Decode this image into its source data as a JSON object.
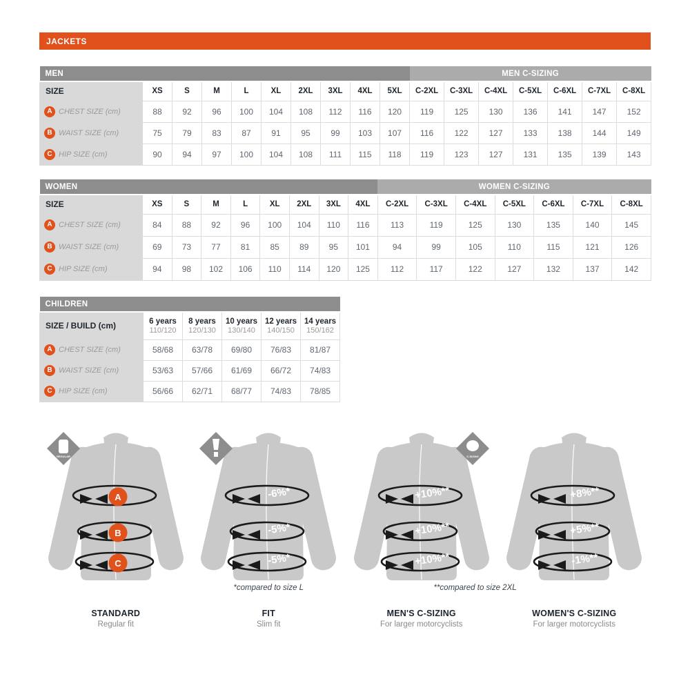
{
  "page_title": "JACKETS",
  "colors": {
    "orange": "#E1511C",
    "group_dark": "#8D8D8D",
    "group_light": "#ABABAB",
    "label_bg": "#D9D9D9",
    "jacket_gray": "#C9C9C9",
    "ring_black": "#1A1A1A"
  },
  "tables": {
    "men": {
      "group_label": "MEN",
      "group_right_label": "MEN C-SIZING",
      "size_label": "SIZE",
      "columns": [
        "XS",
        "S",
        "M",
        "L",
        "XL",
        "2XL",
        "3XL",
        "4XL",
        "5XL",
        "C-2XL",
        "C-3XL",
        "C-4XL",
        "C-5XL",
        "C-6XL",
        "C-7XL",
        "C-8XL"
      ],
      "left_group_columns": 9,
      "rows": [
        {
          "badge": "A",
          "label": "CHEST SIZE (cm)",
          "values": [
            "88",
            "92",
            "96",
            "100",
            "104",
            "108",
            "112",
            "116",
            "120",
            "119",
            "125",
            "130",
            "136",
            "141",
            "147",
            "152"
          ]
        },
        {
          "badge": "B",
          "label": "WAIST SIZE (cm)",
          "values": [
            "75",
            "79",
            "83",
            "87",
            "91",
            "95",
            "99",
            "103",
            "107",
            "116",
            "122",
            "127",
            "133",
            "138",
            "144",
            "149"
          ]
        },
        {
          "badge": "C",
          "label": "HIP SIZE (cm)",
          "values": [
            "90",
            "94",
            "97",
            "100",
            "104",
            "108",
            "111",
            "115",
            "118",
            "119",
            "123",
            "127",
            "131",
            "135",
            "139",
            "143"
          ]
        }
      ]
    },
    "women": {
      "group_label": "WOMEN",
      "group_right_label": "WOMEN C-SIZING",
      "size_label": "SIZE",
      "columns": [
        "XS",
        "S",
        "M",
        "L",
        "XL",
        "2XL",
        "3XL",
        "4XL",
        "C-2XL",
        "C-3XL",
        "C-4XL",
        "C-5XL",
        "C-6XL",
        "C-7XL",
        "C-8XL"
      ],
      "left_group_columns": 8,
      "rows": [
        {
          "badge": "A",
          "label": "CHEST SIZE (cm)",
          "values": [
            "84",
            "88",
            "92",
            "96",
            "100",
            "104",
            "110",
            "116",
            "113",
            "119",
            "125",
            "130",
            "135",
            "140",
            "145"
          ]
        },
        {
          "badge": "B",
          "label": "WAIST SIZE (cm)",
          "values": [
            "69",
            "73",
            "77",
            "81",
            "85",
            "89",
            "95",
            "101",
            "94",
            "99",
            "105",
            "110",
            "115",
            "121",
            "126"
          ]
        },
        {
          "badge": "C",
          "label": "HIP SIZE (cm)",
          "values": [
            "94",
            "98",
            "102",
            "106",
            "110",
            "114",
            "120",
            "125",
            "112",
            "117",
            "122",
            "127",
            "132",
            "137",
            "142"
          ]
        }
      ]
    },
    "children": {
      "group_label": "CHILDREN",
      "size_label": "SIZE / BUILD (cm)",
      "columns": [
        {
          "years": "6 years",
          "build": "110/120"
        },
        {
          "years": "8 years",
          "build": "120/130"
        },
        {
          "years": "10 years",
          "build": "130/140"
        },
        {
          "years": "12 years",
          "build": "140/150"
        },
        {
          "years": "14 years",
          "build": "150/162"
        }
      ],
      "rows": [
        {
          "badge": "A",
          "label": "CHEST SIZE (cm)",
          "values": [
            "58/68",
            "63/78",
            "69/80",
            "76/83",
            "81/87"
          ]
        },
        {
          "badge": "B",
          "label": "WAIST SIZE (cm)",
          "values": [
            "53/63",
            "57/66",
            "61/69",
            "66/72",
            "74/83"
          ]
        },
        {
          "badge": "C",
          "label": "HIP SIZE (cm)",
          "values": [
            "56/66",
            "62/71",
            "68/77",
            "74/83",
            "78/85"
          ]
        }
      ]
    }
  },
  "figures": [
    {
      "title": "STANDARD",
      "subtitle": "Regular fit",
      "badge": {
        "type": "regular",
        "text": "REGULAR",
        "pos": "left"
      },
      "rings": [
        {
          "kind": "badge",
          "label": "A"
        },
        {
          "kind": "badge",
          "label": "B"
        },
        {
          "kind": "badge",
          "label": "C"
        }
      ],
      "footnote": ""
    },
    {
      "title": "FIT",
      "subtitle": "Slim fit",
      "badge": {
        "type": "slim",
        "text": "",
        "pos": "left"
      },
      "rings": [
        {
          "kind": "text",
          "label": "-6%*"
        },
        {
          "kind": "text",
          "label": "-5%*"
        },
        {
          "kind": "text",
          "label": "-5%*"
        }
      ],
      "footnote": "*compared to size L",
      "footnote_align": "center"
    },
    {
      "title": "MEN'S C-SIZING",
      "subtitle": "For larger motorcyclists",
      "badge": {
        "type": "c-sizing",
        "text": "C-SIZING",
        "pos": "right"
      },
      "rings": [
        {
          "kind": "text",
          "label": "+10%**"
        },
        {
          "kind": "text",
          "label": "+10%**"
        },
        {
          "kind": "text",
          "label": "+10%**"
        }
      ],
      "footnote": "**compared to size 2XL",
      "footnote_align": "right-shift"
    },
    {
      "title": "WOMEN'S C-SIZING",
      "subtitle": "For larger motorcyclists",
      "badge": null,
      "rings": [
        {
          "kind": "text",
          "label": "+8%**"
        },
        {
          "kind": "text",
          "label": "+5%**"
        },
        {
          "kind": "text",
          "label": "-1%**"
        }
      ],
      "footnote": ""
    }
  ]
}
